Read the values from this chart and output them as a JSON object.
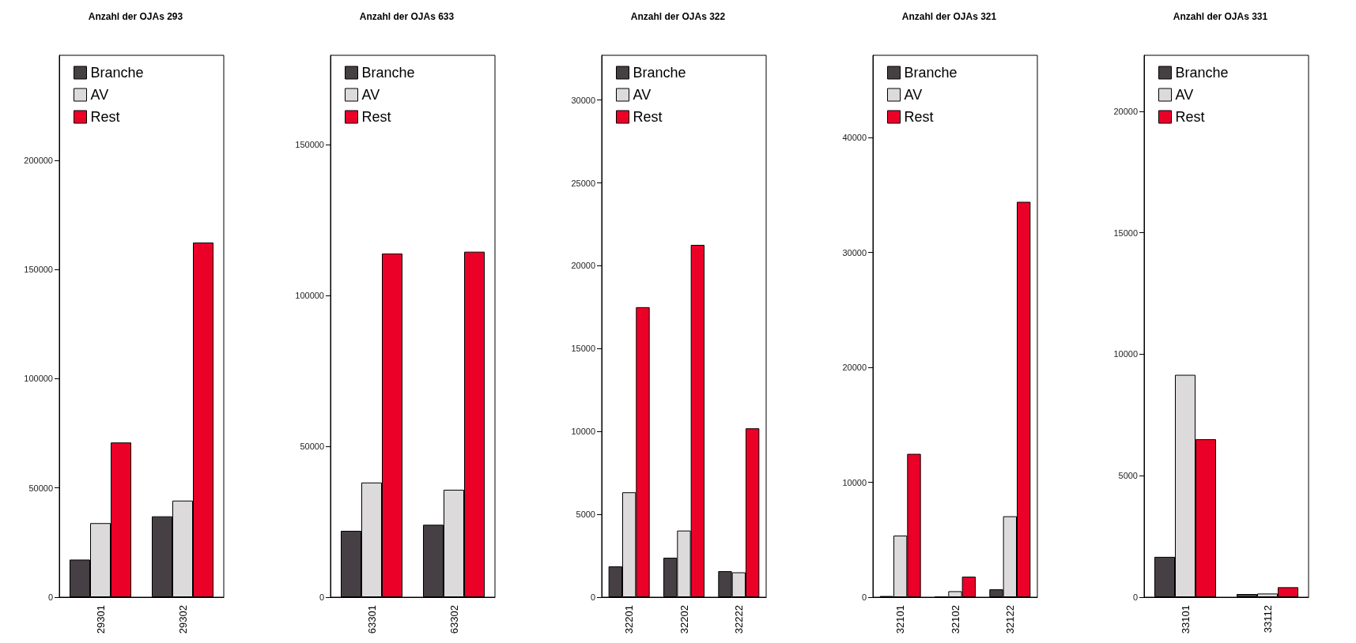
{
  "chart_data": [
    {
      "type": "bar",
      "title": "Anzahl der OJAs 293",
      "categories": [
        "29301",
        "29302"
      ],
      "legend": "top left",
      "ylim": [
        0,
        248000
      ],
      "yticks": [
        0,
        50000,
        100000,
        150000,
        200000
      ],
      "series": [
        {
          "name": "Branche",
          "color": "#463f43",
          "values": [
            17200,
            37000
          ]
        },
        {
          "name": "AV",
          "color": "#dcdadb",
          "values": [
            33900,
            44200
          ]
        },
        {
          "name": "Rest",
          "color": "#eb0028",
          "values": [
            70800,
            162300
          ]
        }
      ]
    },
    {
      "type": "bar",
      "title": "Anzahl der OJAs 633",
      "categories": [
        "63301",
        "63302"
      ],
      "legend": "top left",
      "ylim": [
        0,
        179600
      ],
      "yticks": [
        0,
        50000,
        100000,
        150000
      ],
      "series": [
        {
          "name": "Branche",
          "color": "#463f43",
          "values": [
            22000,
            24000
          ]
        },
        {
          "name": "AV",
          "color": "#dcdadb",
          "values": [
            38000,
            35600
          ]
        },
        {
          "name": "Rest",
          "color": "#eb0028",
          "values": [
            113900,
            114500
          ]
        }
      ]
    },
    {
      "type": "bar",
      "title": "Anzahl der OJAs 322",
      "categories": [
        "32201",
        "32202",
        "32222"
      ],
      "legend": "top left",
      "ylim": [
        0,
        32700
      ],
      "yticks": [
        0,
        5000,
        10000,
        15000,
        20000,
        25000,
        30000
      ],
      "series": [
        {
          "name": "Branche",
          "color": "#463f43",
          "values": [
            1860,
            2380,
            1570
          ]
        },
        {
          "name": "AV",
          "color": "#dcdadb",
          "values": [
            6330,
            4020,
            1500
          ]
        },
        {
          "name": "Rest",
          "color": "#eb0028",
          "values": [
            17500,
            21260,
            10190
          ]
        }
      ]
    },
    {
      "type": "bar",
      "title": "Anzahl der OJAs 321",
      "categories": [
        "32101",
        "32102",
        "32122"
      ],
      "legend": "top left",
      "ylim": [
        0,
        47150
      ],
      "yticks": [
        0,
        10000,
        20000,
        30000,
        40000
      ],
      "series": [
        {
          "name": "Branche",
          "color": "#463f43",
          "values": [
            100,
            50,
            690
          ]
        },
        {
          "name": "AV",
          "color": "#dcdadb",
          "values": [
            5360,
            520,
            7040
          ]
        },
        {
          "name": "Rest",
          "color": "#eb0028",
          "values": [
            12470,
            1790,
            34400
          ]
        }
      ]
    },
    {
      "type": "bar",
      "title": "Anzahl der OJAs 331",
      "categories": [
        "33101",
        "33112"
      ],
      "legend": "top left",
      "ylim": [
        0,
        22300
      ],
      "yticks": [
        0,
        5000,
        10000,
        15000,
        20000
      ],
      "series": [
        {
          "name": "Branche",
          "color": "#463f43",
          "values": [
            1660,
            130
          ]
        },
        {
          "name": "AV",
          "color": "#dcdadb",
          "values": [
            9150,
            150
          ]
        },
        {
          "name": "Rest",
          "color": "#eb0028",
          "values": [
            6500,
            410
          ]
        }
      ]
    }
  ]
}
